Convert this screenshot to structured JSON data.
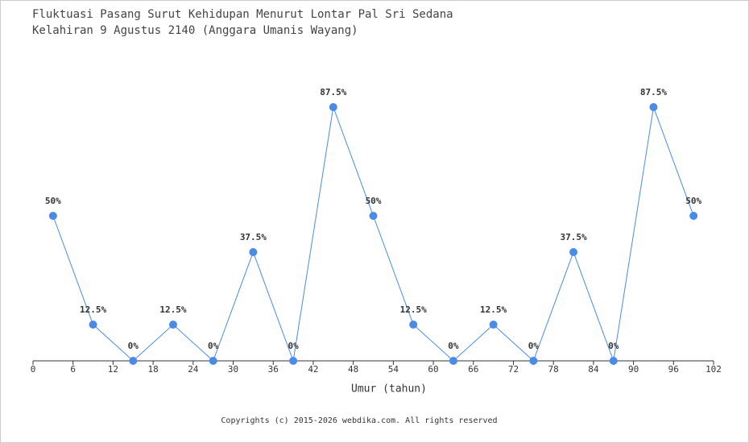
{
  "chart_data": {
    "type": "line",
    "title": "Fluktuasi Pasang Surut Kehidupan Menurut Lontar Pal Sri Sedana",
    "subtitle": "Kelahiran 9 Agustus 2140 (Anggara Umanis Wayang)",
    "x_label": "Umur (tahun)",
    "footer": "Copyrights (c) 2015-2026 webdika.com. All rights reserved",
    "x": [
      3,
      9,
      15,
      21,
      27,
      33,
      39,
      45,
      51,
      57,
      63,
      69,
      75,
      81,
      87,
      93,
      99
    ],
    "values": [
      50,
      12.5,
      0,
      12.5,
      0,
      37.5,
      0,
      87.5,
      50,
      12.5,
      0,
      12.5,
      0,
      37.5,
      0,
      87.5,
      50
    ],
    "value_labels": [
      "50%",
      "12.5%",
      "0%",
      "12.5%",
      "0%",
      "37.5%",
      "0%",
      "87.5%",
      "50%",
      "12.5%",
      "0%",
      "12.5%",
      "0%",
      "37.5%",
      "0%",
      "87.5%",
      "50%"
    ],
    "color": "#4a8ae8",
    "xlim": [
      0,
      102
    ],
    "xticks": [
      0,
      6,
      12,
      18,
      24,
      30,
      36,
      42,
      48,
      54,
      60,
      66,
      72,
      78,
      84,
      90,
      96,
      102
    ],
    "ylim": [
      0,
      100
    ]
  }
}
